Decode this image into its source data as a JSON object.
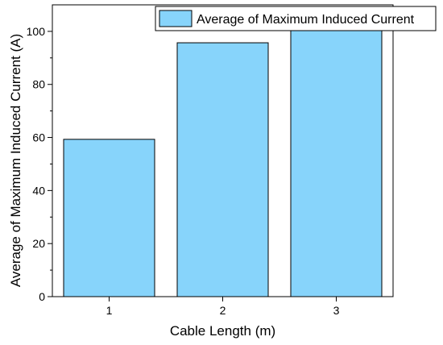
{
  "chart_data": {
    "type": "bar",
    "categories": [
      "1",
      "2",
      "3"
    ],
    "series": [
      {
        "name": "Average of Maximum Induced Current",
        "values": [
          59.3,
          95.7,
          101.8
        ]
      }
    ],
    "xlabel": "Cable Length (m)",
    "ylabel": "Average of Maximum Induced Current (A)",
    "ylim": [
      0,
      110
    ],
    "yticks": [
      0,
      20,
      40,
      60,
      80,
      100
    ],
    "grid": false,
    "legend_position": "top-right",
    "colors": {
      "bar_fill": "#87d4fb",
      "bar_stroke": "#000000"
    }
  }
}
